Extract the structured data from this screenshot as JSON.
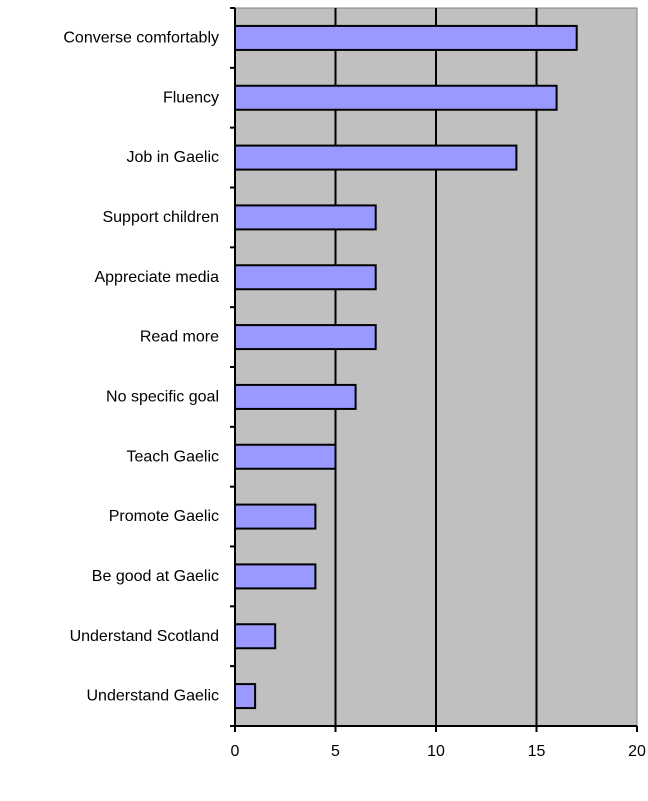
{
  "chart_data": {
    "type": "bar",
    "orientation": "horizontal",
    "title": "",
    "xlabel": "",
    "ylabel": "",
    "categories": [
      "Converse comfortably",
      "Fluency",
      "Job in Gaelic",
      "Support children",
      "Appreciate media",
      "Read more",
      "No specific goal",
      "Teach Gaelic",
      "Promote Gaelic",
      "Be good at Gaelic",
      "Understand Scotland",
      "Understand Gaelic"
    ],
    "values": [
      17,
      16,
      14,
      7,
      7,
      7,
      6,
      5,
      4,
      4,
      2,
      1
    ],
    "xlim": [
      0,
      20
    ],
    "xticks": [
      "0",
      "5",
      "10",
      "15",
      "20"
    ],
    "grid": "vertical",
    "legend": "none",
    "colors": {
      "plot_background": "#c0c0c0",
      "bar_fill": "#9999ff",
      "bar_stroke": "#000000",
      "gridline": "#000000"
    }
  }
}
